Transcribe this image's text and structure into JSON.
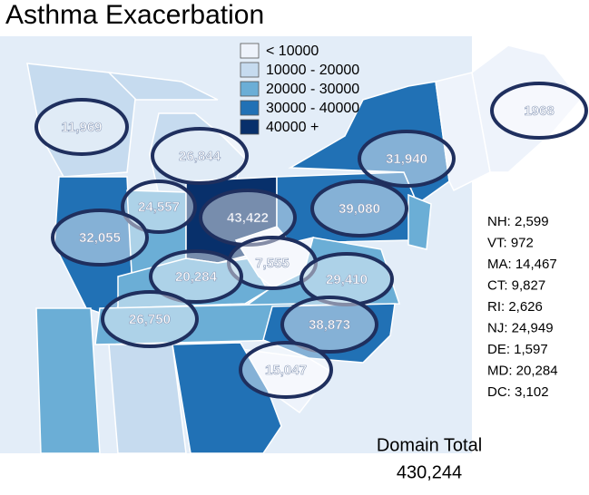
{
  "title": "Asthma Exacerbation",
  "legend": [
    {
      "label": "< 10000",
      "color": "#eef3fb"
    },
    {
      "label": "10000 - 20000",
      "color": "#c6dbef"
    },
    {
      "label": "20000 - 30000",
      "color": "#6baed6"
    },
    {
      "label": "30000 - 40000",
      "color": "#2171b5"
    },
    {
      "label": "40000 +",
      "color": "#08306b"
    }
  ],
  "state_labels": [
    "11,969",
    "1968",
    "26,844",
    "31,940",
    "24,557",
    "43,422",
    "39,080",
    "32,055",
    "7,555",
    "20,284",
    "29,410",
    "26,750",
    "38,873",
    "15,047"
  ],
  "side_list": [
    "NH: 2,599",
    "VT: 972",
    "MA: 14,467",
    "CT: 9,827",
    "RI: 2,626",
    "NJ: 24,949",
    "DE: 1,597",
    "MD: 20,284",
    "DC: 3,102"
  ],
  "total": {
    "label": "Domain Total",
    "value": "430,244"
  }
}
